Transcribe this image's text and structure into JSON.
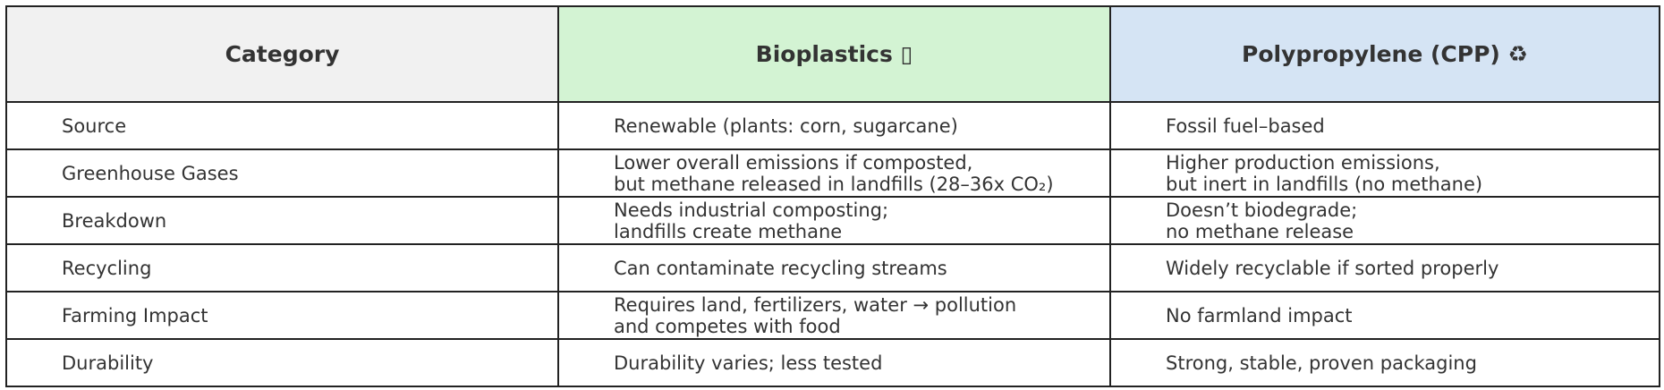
{
  "header": {
    "columns": [
      "Category",
      "Bioplastics ▯",
      "Polypropylene (CPP) ♻"
    ]
  },
  "colors": {
    "category_header": "#f1f1f1",
    "bioplastics_header": "#d3f3d3",
    "polypropylene_header": "#d5e4f4"
  },
  "rows": [
    {
      "category": "Source",
      "bioplastics": "Renewable (plants: corn, sugarcane)",
      "polypropylene": "Fossil fuel–based"
    },
    {
      "category": "Greenhouse Gases",
      "bioplastics": "Lower overall emissions if composted,\nbut methane released in landfills (28–36x CO₂)",
      "polypropylene": "Higher production emissions,\nbut inert in landfills (no methane)"
    },
    {
      "category": "Breakdown",
      "bioplastics": "Needs industrial composting;\nlandfills create methane",
      "polypropylene": "Doesn’t biodegrade;\nno methane release"
    },
    {
      "category": "Recycling",
      "bioplastics": "Can contaminate recycling streams",
      "polypropylene": "Widely recyclable if sorted properly"
    },
    {
      "category": "Farming Impact",
      "bioplastics": "Requires land, fertilizers, water → pollution\nand competes with food",
      "polypropylene": "No farmland impact"
    },
    {
      "category": "Durability",
      "bioplastics": "Durability varies; less tested",
      "polypropylene": "Strong, stable, proven packaging"
    }
  ]
}
